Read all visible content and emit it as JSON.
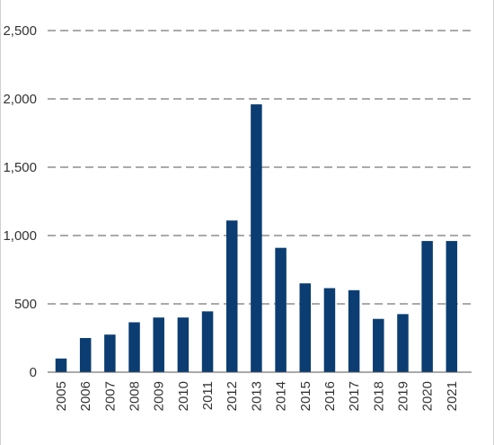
{
  "chart_data": {
    "type": "bar",
    "title": "",
    "xlabel": "",
    "ylabel": "",
    "categories": [
      "2005",
      "2006",
      "2007",
      "2008",
      "2009",
      "2010",
      "2011",
      "2012",
      "2013",
      "2014",
      "2015",
      "2016",
      "2017",
      "2018",
      "2019",
      "2020",
      "2021"
    ],
    "values": [
      100,
      250,
      275,
      365,
      400,
      400,
      445,
      1110,
      1960,
      910,
      650,
      615,
      600,
      390,
      425,
      960,
      960
    ],
    "ylim": [
      0,
      2500
    ],
    "yticks": [
      0,
      500,
      1000,
      1500,
      2000,
      2500
    ],
    "ytick_labels": [
      "0",
      "500",
      "1,000",
      "1,500",
      "2,000",
      "2,500"
    ],
    "grid": true,
    "grid_style": "dashed",
    "legend": "none",
    "bar_color": "#0b3d72"
  }
}
